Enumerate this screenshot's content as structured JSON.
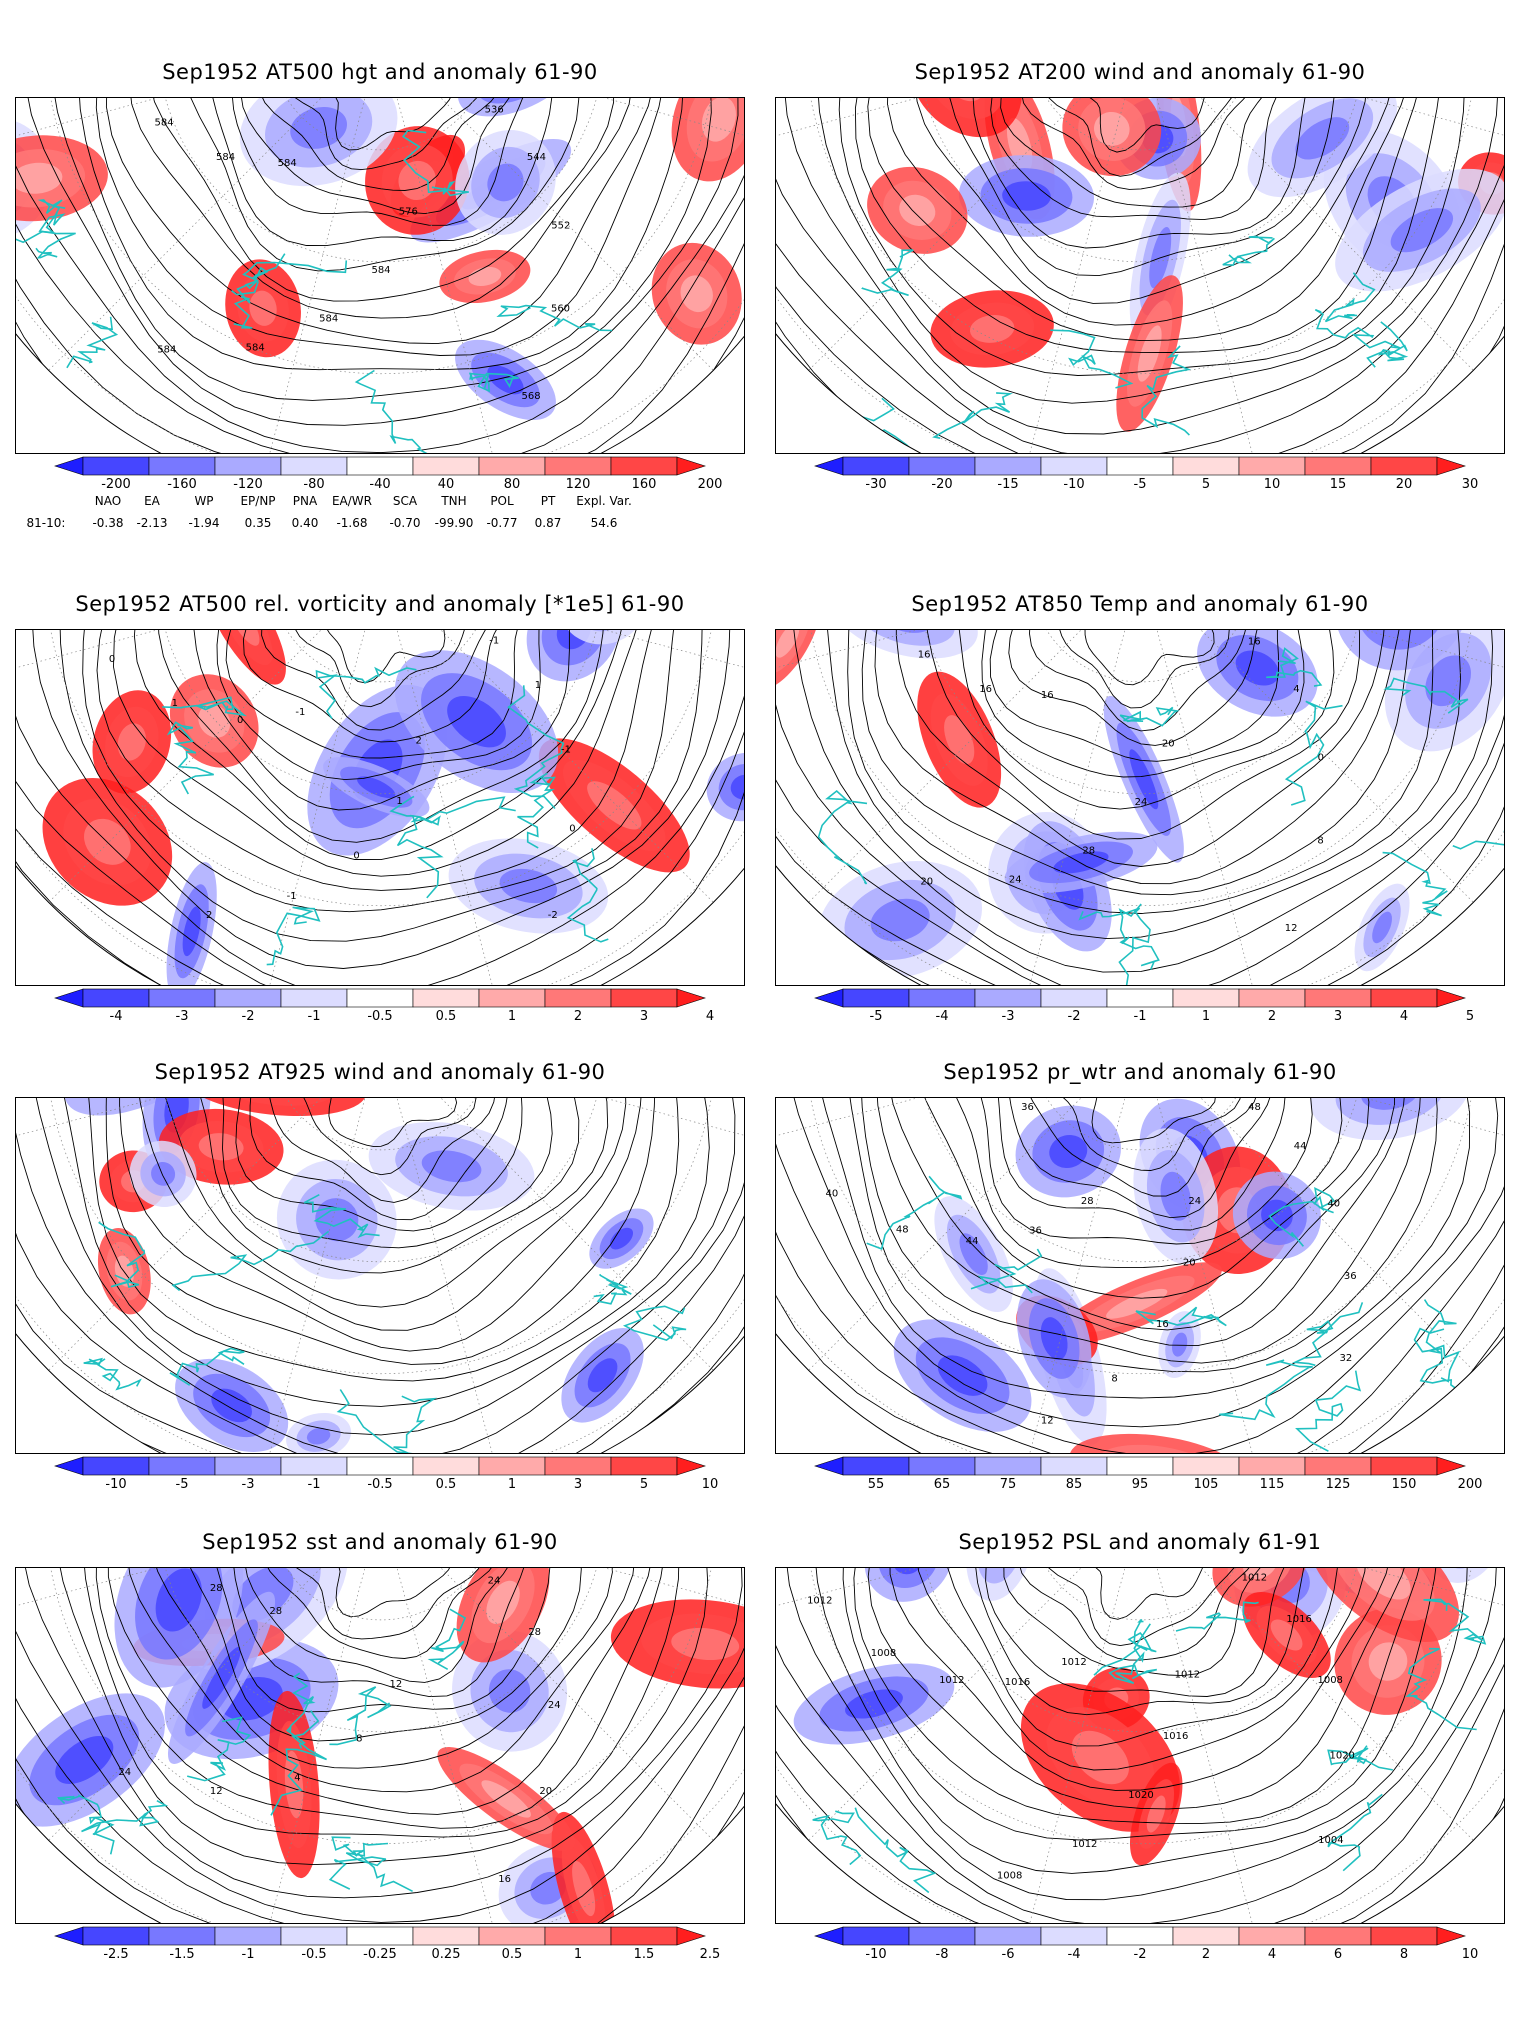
{
  "panels": [
    {
      "id": "p1",
      "title": "Sep1952 AT500 hgt and anomaly 61-90",
      "colorbar": [
        "-200",
        "-160",
        "-120",
        "-80",
        "-40",
        "40",
        "80",
        "120",
        "160",
        "200"
      ],
      "contour_labels": [
        "536",
        "544",
        "552",
        "560",
        "568",
        "576",
        "584",
        "584",
        "584",
        "584",
        "584",
        "584",
        "584"
      ]
    },
    {
      "id": "p2",
      "title": "Sep1952 AT200 wind and anomaly 61-90",
      "colorbar": [
        "-30",
        "-20",
        "-15",
        "-10",
        "-5",
        "5",
        "10",
        "15",
        "20",
        "30"
      ],
      "contour_labels": []
    },
    {
      "id": "p3",
      "title": "Sep1952 AT500 rel. vorticity and anomaly [*1e5] 61-90",
      "colorbar": [
        "-4",
        "-3",
        "-2",
        "-1",
        "-0.5",
        "0.5",
        "1",
        "2",
        "3",
        "4"
      ],
      "contour_labels": [
        "-1",
        "1",
        "-1",
        "0",
        "-2",
        "2",
        "1",
        "0",
        "-1",
        "2",
        "-1",
        "0",
        "1",
        "0"
      ]
    },
    {
      "id": "p4",
      "title": "Sep1952 AT850 Temp and anomaly 61-90",
      "colorbar": [
        "-5",
        "-4",
        "-3",
        "-2",
        "-1",
        "1",
        "2",
        "3",
        "4",
        "5"
      ],
      "contour_labels": [
        "16",
        "4",
        "0",
        "8",
        "12",
        "20",
        "24",
        "28",
        "24",
        "20",
        "16",
        "16",
        "16"
      ]
    },
    {
      "id": "p5",
      "title": "Sep1952 AT925 wind and anomaly 61-90",
      "colorbar": [
        "-10",
        "-5",
        "-3",
        "-1",
        "-0.5",
        "0.5",
        "1",
        "3",
        "5",
        "10"
      ],
      "contour_labels": []
    },
    {
      "id": "p6",
      "title": "Sep1952 pr_wtr and anomaly 61-90",
      "colorbar": [
        "55",
        "65",
        "75",
        "85",
        "95",
        "105",
        "115",
        "125",
        "150",
        "200"
      ],
      "contour_labels": [
        "48",
        "44",
        "40",
        "36",
        "32",
        "24",
        "20",
        "16",
        "8",
        "12",
        "28",
        "36",
        "44",
        "48",
        "40",
        "36"
      ]
    },
    {
      "id": "p7",
      "title": "Sep1952 sst and anomaly 61-90",
      "colorbar": [
        "-2.5",
        "-1.5",
        "-1",
        "-0.5",
        "-0.25",
        "0.25",
        "0.5",
        "1",
        "1.5",
        "2.5"
      ],
      "contour_labels": [
        "24",
        "28",
        "24",
        "20",
        "16",
        "12",
        "8",
        "4",
        "12",
        "24",
        "28",
        "28"
      ]
    },
    {
      "id": "p8",
      "title": "Sep1952 PSL and anomaly 61-91",
      "colorbar": [
        "-10",
        "-8",
        "-6",
        "-4",
        "-2",
        "2",
        "4",
        "6",
        "8",
        "10"
      ],
      "contour_labels": [
        "1012",
        "1016",
        "1008",
        "1020",
        "1004",
        "1012",
        "1016",
        "1020",
        "1012",
        "1008",
        "1012",
        "1016",
        "1012",
        "1008",
        "1012"
      ]
    }
  ],
  "teleconnections": {
    "labels": [
      "NAO",
      "EA",
      "WP",
      "EP/NP",
      "PNA",
      "EA/WR",
      "SCA",
      "TNH",
      "POL",
      "PT",
      "Expl. Var."
    ],
    "row_label": "81-10:",
    "values": [
      "-0.38",
      "-2.13",
      "-1.94",
      "0.35",
      "0.40",
      "-1.68",
      "-0.70",
      "-99.90",
      "-0.77",
      "0.87",
      "54.6"
    ]
  },
  "colors": {
    "coast": "#20c0c0",
    "neg": [
      "#1e1eff",
      "#4646ff",
      "#7878ff",
      "#aaaaff",
      "#dcdcff"
    ],
    "pos": [
      "#ffdcdc",
      "#ffaaaa",
      "#ff7878",
      "#ff4646",
      "#ff1e1e"
    ]
  }
}
